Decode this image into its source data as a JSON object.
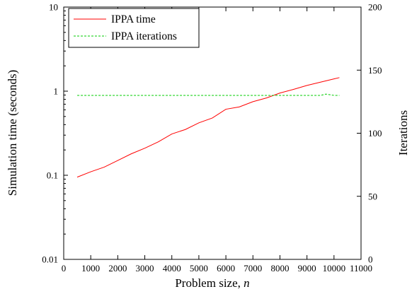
{
  "chart_data": {
    "type": "line",
    "xlabel": "Problem size,",
    "xlabel_var": "n",
    "ylabel_left": "Simulation time (seconds)",
    "ylabel_right": "Iterations",
    "xlim": [
      0,
      11000
    ],
    "ylim_left": [
      0.01,
      10
    ],
    "ylim_right": [
      0,
      200
    ],
    "left_scale": "log",
    "right_scale": "linear",
    "grid": false,
    "legend_position": "top-left",
    "x_ticks": [
      "0",
      "1000",
      "2000",
      "3000",
      "4000",
      "5000",
      "6000",
      "7000",
      "8000",
      "9000",
      "10000",
      "11000"
    ],
    "y_ticks_left": [
      "0.01",
      "0.1",
      "1",
      "10"
    ],
    "y_ticks_right": [
      "0",
      "50",
      "100",
      "150",
      "200"
    ],
    "series": [
      {
        "name": "IPPA time",
        "color": "#ff0000",
        "dash": "solid",
        "axis": "left",
        "x": [
          500,
          1000,
          1500,
          2000,
          2500,
          3000,
          3500,
          4000,
          4500,
          5000,
          5500,
          6000,
          6500,
          7000,
          7500,
          8000,
          8500,
          9000,
          9500,
          10000,
          10200
        ],
        "y": [
          0.095,
          0.11,
          0.125,
          0.15,
          0.18,
          0.21,
          0.25,
          0.31,
          0.35,
          0.42,
          0.48,
          0.61,
          0.65,
          0.75,
          0.83,
          0.95,
          1.05,
          1.17,
          1.28,
          1.4,
          1.45
        ]
      },
      {
        "name": "IPPA iterations",
        "color": "#00cc00",
        "dash": "dashed",
        "axis": "right",
        "x": [
          500,
          1000,
          1500,
          2000,
          2500,
          3000,
          3500,
          4000,
          4500,
          5000,
          5500,
          6000,
          6500,
          7000,
          7500,
          8000,
          8500,
          9000,
          9500,
          9700,
          10000,
          10200
        ],
        "y": [
          130,
          130,
          130,
          130,
          130,
          130,
          130,
          130,
          130,
          130,
          130,
          130,
          130,
          130,
          130,
          130,
          130,
          130,
          130,
          131,
          130,
          130
        ]
      }
    ]
  }
}
